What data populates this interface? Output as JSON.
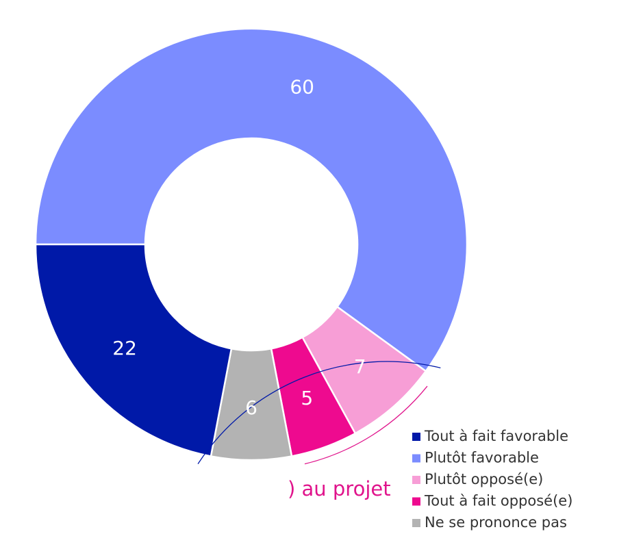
{
  "chart_data": {
    "type": "donut",
    "categories": [
      "Tout à fait favorable",
      "Plutôt favorable",
      "Plutôt opposé(e)",
      "Tout à fait opposé(e)",
      "Ne se prononce pas"
    ],
    "values": [
      22,
      60,
      7,
      5,
      6
    ],
    "colors": [
      "#0019a8",
      "#7b8cff",
      "#f79ed6",
      "#ee0a8f",
      "#b3b3b3"
    ],
    "label_colors": [
      "#ffffff",
      "#ffffff",
      "#ffffff",
      "#ffffff",
      "#ffffff"
    ],
    "annotation": ") au projet"
  }
}
